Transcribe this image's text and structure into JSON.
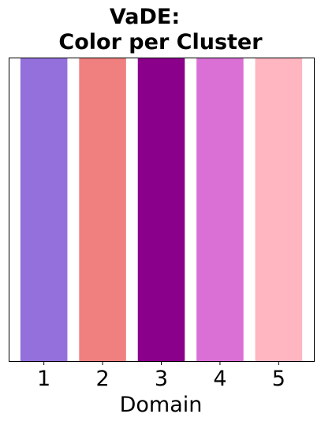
{
  "chart_data": {
    "type": "bar",
    "title_lines": [
      "VaDE:",
      "Color per Cluster"
    ],
    "xlabel": "Domain",
    "ylabel": "",
    "categories": [
      "1",
      "2",
      "3",
      "4",
      "5"
    ],
    "values": [
      1,
      1,
      1,
      1,
      1
    ],
    "colors": [
      "#9370DB",
      "#F08080",
      "#8B008B",
      "#DA70D6",
      "#FFB6C1"
    ],
    "ylim": [
      0,
      1
    ],
    "y_ticks_visible": false,
    "grid": false,
    "legend": "none"
  }
}
